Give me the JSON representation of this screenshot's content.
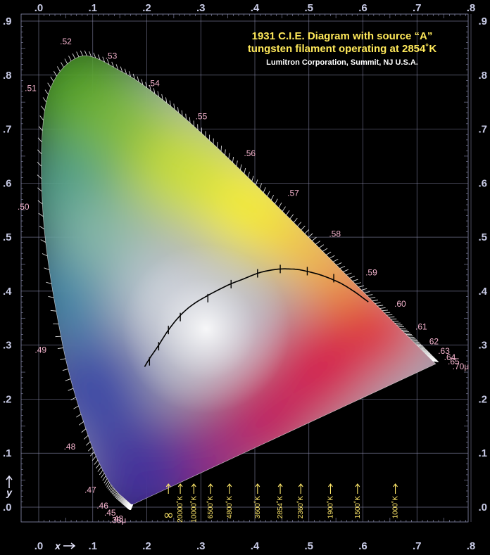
{
  "chart_data": {
    "type": "scatter",
    "title_lines": [
      "1931 C.I.E. Diagram with source “A”",
      "tungsten filament operating at 2854˚K"
    ],
    "subtitle": "Lumitron Corporation, Summit, NJ U.S.A.",
    "xlabel": "x",
    "ylabel": "y",
    "xlim": [
      0,
      0.8
    ],
    "ylim": [
      0,
      0.9
    ],
    "x_ticks": [
      ".0",
      ".1",
      ".2",
      ".3",
      ".4",
      ".5",
      ".6",
      ".7",
      ".8"
    ],
    "y_ticks": [
      ".0",
      ".1",
      ".2",
      ".3",
      ".4",
      ".5",
      ".6",
      ".7",
      ".8",
      ".9"
    ],
    "grid": true,
    "spectral_locus": {
      "x": [
        0.1741,
        0.1738,
        0.1733,
        0.1726,
        0.1714,
        0.1689,
        0.1644,
        0.1566,
        0.144,
        0.1241,
        0.0913,
        0.0454,
        0.0082,
        0.0139,
        0.0743,
        0.1547,
        0.2296,
        0.3016,
        0.3731,
        0.4441,
        0.5125,
        0.5752,
        0.627,
        0.6658,
        0.6915,
        0.7079,
        0.719,
        0.726,
        0.73,
        0.7347
      ],
      "y": [
        0.005,
        0.005,
        0.0048,
        0.0048,
        0.0051,
        0.0069,
        0.0109,
        0.0177,
        0.0297,
        0.0578,
        0.1327,
        0.295,
        0.5384,
        0.7502,
        0.8338,
        0.8059,
        0.7543,
        0.6923,
        0.6245,
        0.5547,
        0.4866,
        0.4242,
        0.3725,
        0.334,
        0.3083,
        0.292,
        0.2809,
        0.274,
        0.27,
        0.2653
      ]
    },
    "wavelength_labels": [
      {
        "text": ".38μ",
        "x": 0.1741,
        "y": 0.005
      },
      {
        "text": ".43",
        "x": 0.169,
        "y": 0.0069
      },
      {
        "text": ".45",
        "x": 0.1566,
        "y": 0.0177
      },
      {
        "text": ".46",
        "x": 0.144,
        "y": 0.0297
      },
      {
        "text": ".47",
        "x": 0.1241,
        "y": 0.0578
      },
      {
        "text": ".48",
        "x": 0.0913,
        "y": 0.1327
      },
      {
        "text": ".49",
        "x": 0.0454,
        "y": 0.295
      },
      {
        "text": ".50",
        "x": 0.0082,
        "y": 0.5384
      },
      {
        "text": ".51",
        "x": 0.0139,
        "y": 0.7502
      },
      {
        "text": ".52",
        "x": 0.0743,
        "y": 0.8338
      },
      {
        "text": ".53",
        "x": 0.1547,
        "y": 0.8059
      },
      {
        "text": ".54",
        "x": 0.2296,
        "y": 0.7543
      },
      {
        "text": ".55",
        "x": 0.3016,
        "y": 0.6923
      },
      {
        "text": ".56",
        "x": 0.3731,
        "y": 0.6245
      },
      {
        "text": ".57",
        "x": 0.4441,
        "y": 0.5547
      },
      {
        "text": ".58",
        "x": 0.5125,
        "y": 0.4866
      },
      {
        "text": ".59",
        "x": 0.5752,
        "y": 0.4242
      },
      {
        "text": ".60",
        "x": 0.627,
        "y": 0.3725
      },
      {
        "text": ".61",
        "x": 0.6658,
        "y": 0.334
      },
      {
        "text": "62",
        "x": 0.6915,
        "y": 0.3083
      },
      {
        "text": ".63",
        "x": 0.7079,
        "y": 0.292
      },
      {
        "text": ".64",
        "x": 0.719,
        "y": 0.2809
      },
      {
        "text": ".65",
        "x": 0.726,
        "y": 0.274
      },
      {
        "text": ".70μ",
        "x": 0.7347,
        "y": 0.2653
      }
    ],
    "planckian_locus": {
      "x": [
        0.196,
        0.205,
        0.222,
        0.24,
        0.262,
        0.285,
        0.313,
        0.35,
        0.38,
        0.405,
        0.425,
        0.447,
        0.465,
        0.48,
        0.495,
        0.515,
        0.53,
        0.545,
        0.56,
        0.575,
        0.59,
        0.61
      ],
      "y": [
        0.26,
        0.275,
        0.3,
        0.328,
        0.355,
        0.375,
        0.392,
        0.411,
        0.423,
        0.433,
        0.438,
        0.441,
        0.441,
        0.44,
        0.437,
        0.432,
        0.427,
        0.421,
        0.414,
        0.405,
        0.395,
        0.38
      ]
    },
    "cct_ticks": {
      "x": [
        0.205,
        0.222,
        0.24,
        0.262,
        0.313,
        0.356,
        0.405,
        0.447,
        0.497,
        0.546
      ],
      "y": [
        0.27,
        0.298,
        0.328,
        0.352,
        0.387,
        0.413,
        0.433,
        0.441,
        0.437,
        0.424
      ]
    },
    "cct_labels": [
      {
        "text": "∞",
        "x": 0.24
      },
      {
        "text": "20000˚K",
        "x": 0.262
      },
      {
        "text": "10000˚K",
        "x": 0.287
      },
      {
        "text": "6500˚K",
        "x": 0.318
      },
      {
        "text": "4800˚K",
        "x": 0.353
      },
      {
        "text": "3600˚K",
        "x": 0.405
      },
      {
        "text": "2854˚K",
        "x": 0.447
      },
      {
        "text": "2360˚K",
        "x": 0.485
      },
      {
        "text": "1900˚K",
        "x": 0.54
      },
      {
        "text": "1500˚K",
        "x": 0.59
      },
      {
        "text": "1000˚K",
        "x": 0.66
      }
    ]
  }
}
